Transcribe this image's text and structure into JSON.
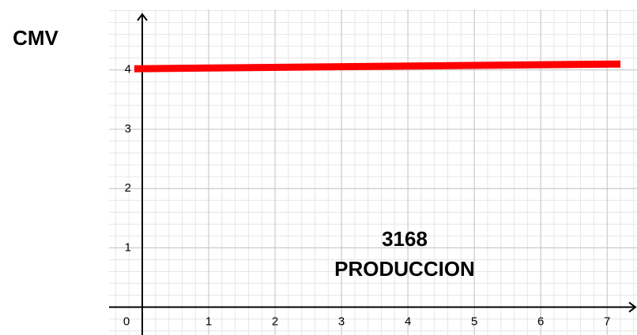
{
  "chart_data": {
    "type": "line",
    "ylabel": "CMV",
    "annotations": [
      "3168",
      "PRODUCCION"
    ],
    "x": [
      -0.12,
      7.2
    ],
    "series": [
      {
        "color": "#ff0000",
        "values": [
          4.02,
          4.1
        ]
      }
    ],
    "xlim": [
      -0.5,
      7.45
    ],
    "ylim": [
      -0.47,
      5.02
    ],
    "xticks": [
      0,
      1,
      2,
      3,
      4,
      5,
      6,
      7
    ],
    "yticks": [
      1,
      2,
      3,
      4
    ],
    "grid": true
  }
}
